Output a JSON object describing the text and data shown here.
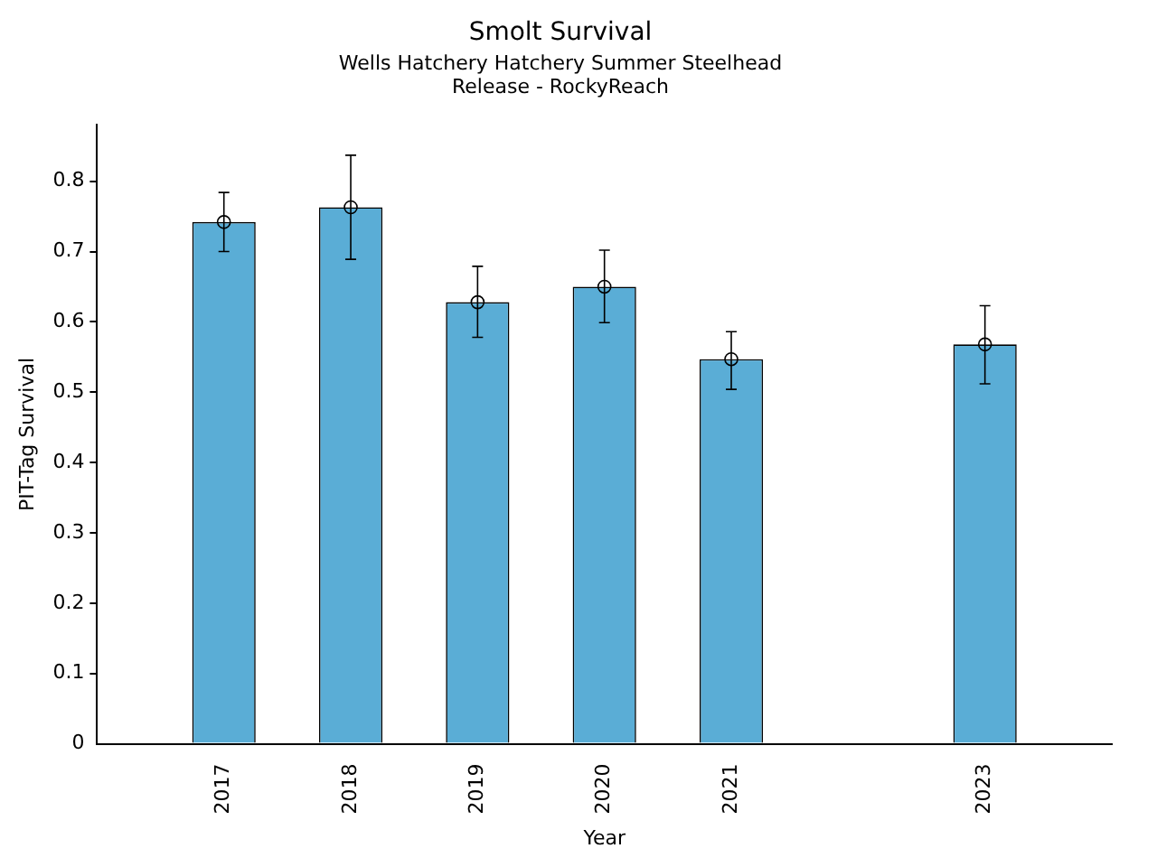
{
  "chart_data": {
    "type": "bar",
    "title": "Smolt Survival",
    "subtitle": "Wells Hatchery Hatchery Summer Steelhead\nRelease - RockyReach",
    "xlabel": "Year",
    "ylabel": "PIT-Tag Survival",
    "x": [
      2017,
      2018,
      2019,
      2020,
      2021,
      2023
    ],
    "series": [
      {
        "color": "#5aadd6",
        "values": [
          0.742,
          0.763,
          0.628,
          0.65,
          0.547,
          0.568
        ],
        "errors": [
          [
            0.7,
            0.784
          ],
          [
            0.689,
            0.837
          ],
          [
            0.578,
            0.679
          ],
          [
            0.599,
            0.702
          ],
          [
            0.504,
            0.586
          ],
          [
            0.512,
            0.623
          ]
        ]
      },
      {
        "type": "scatter",
        "color": "#000000",
        "marker": "circle",
        "values": [
          0.742,
          0.763,
          0.628,
          0.65,
          0.547,
          0.568
        ]
      }
    ],
    "xlim": [
      2016,
      2024
    ],
    "xticks": [
      2017,
      2018,
      2019,
      2020,
      2021,
      2023
    ],
    "ylim": [
      0,
      0.88
    ],
    "yticks": [
      0,
      0.1,
      0.2,
      0.3,
      0.4,
      0.5,
      0.6,
      0.7,
      0.8
    ],
    "grid": false,
    "legend": false
  }
}
